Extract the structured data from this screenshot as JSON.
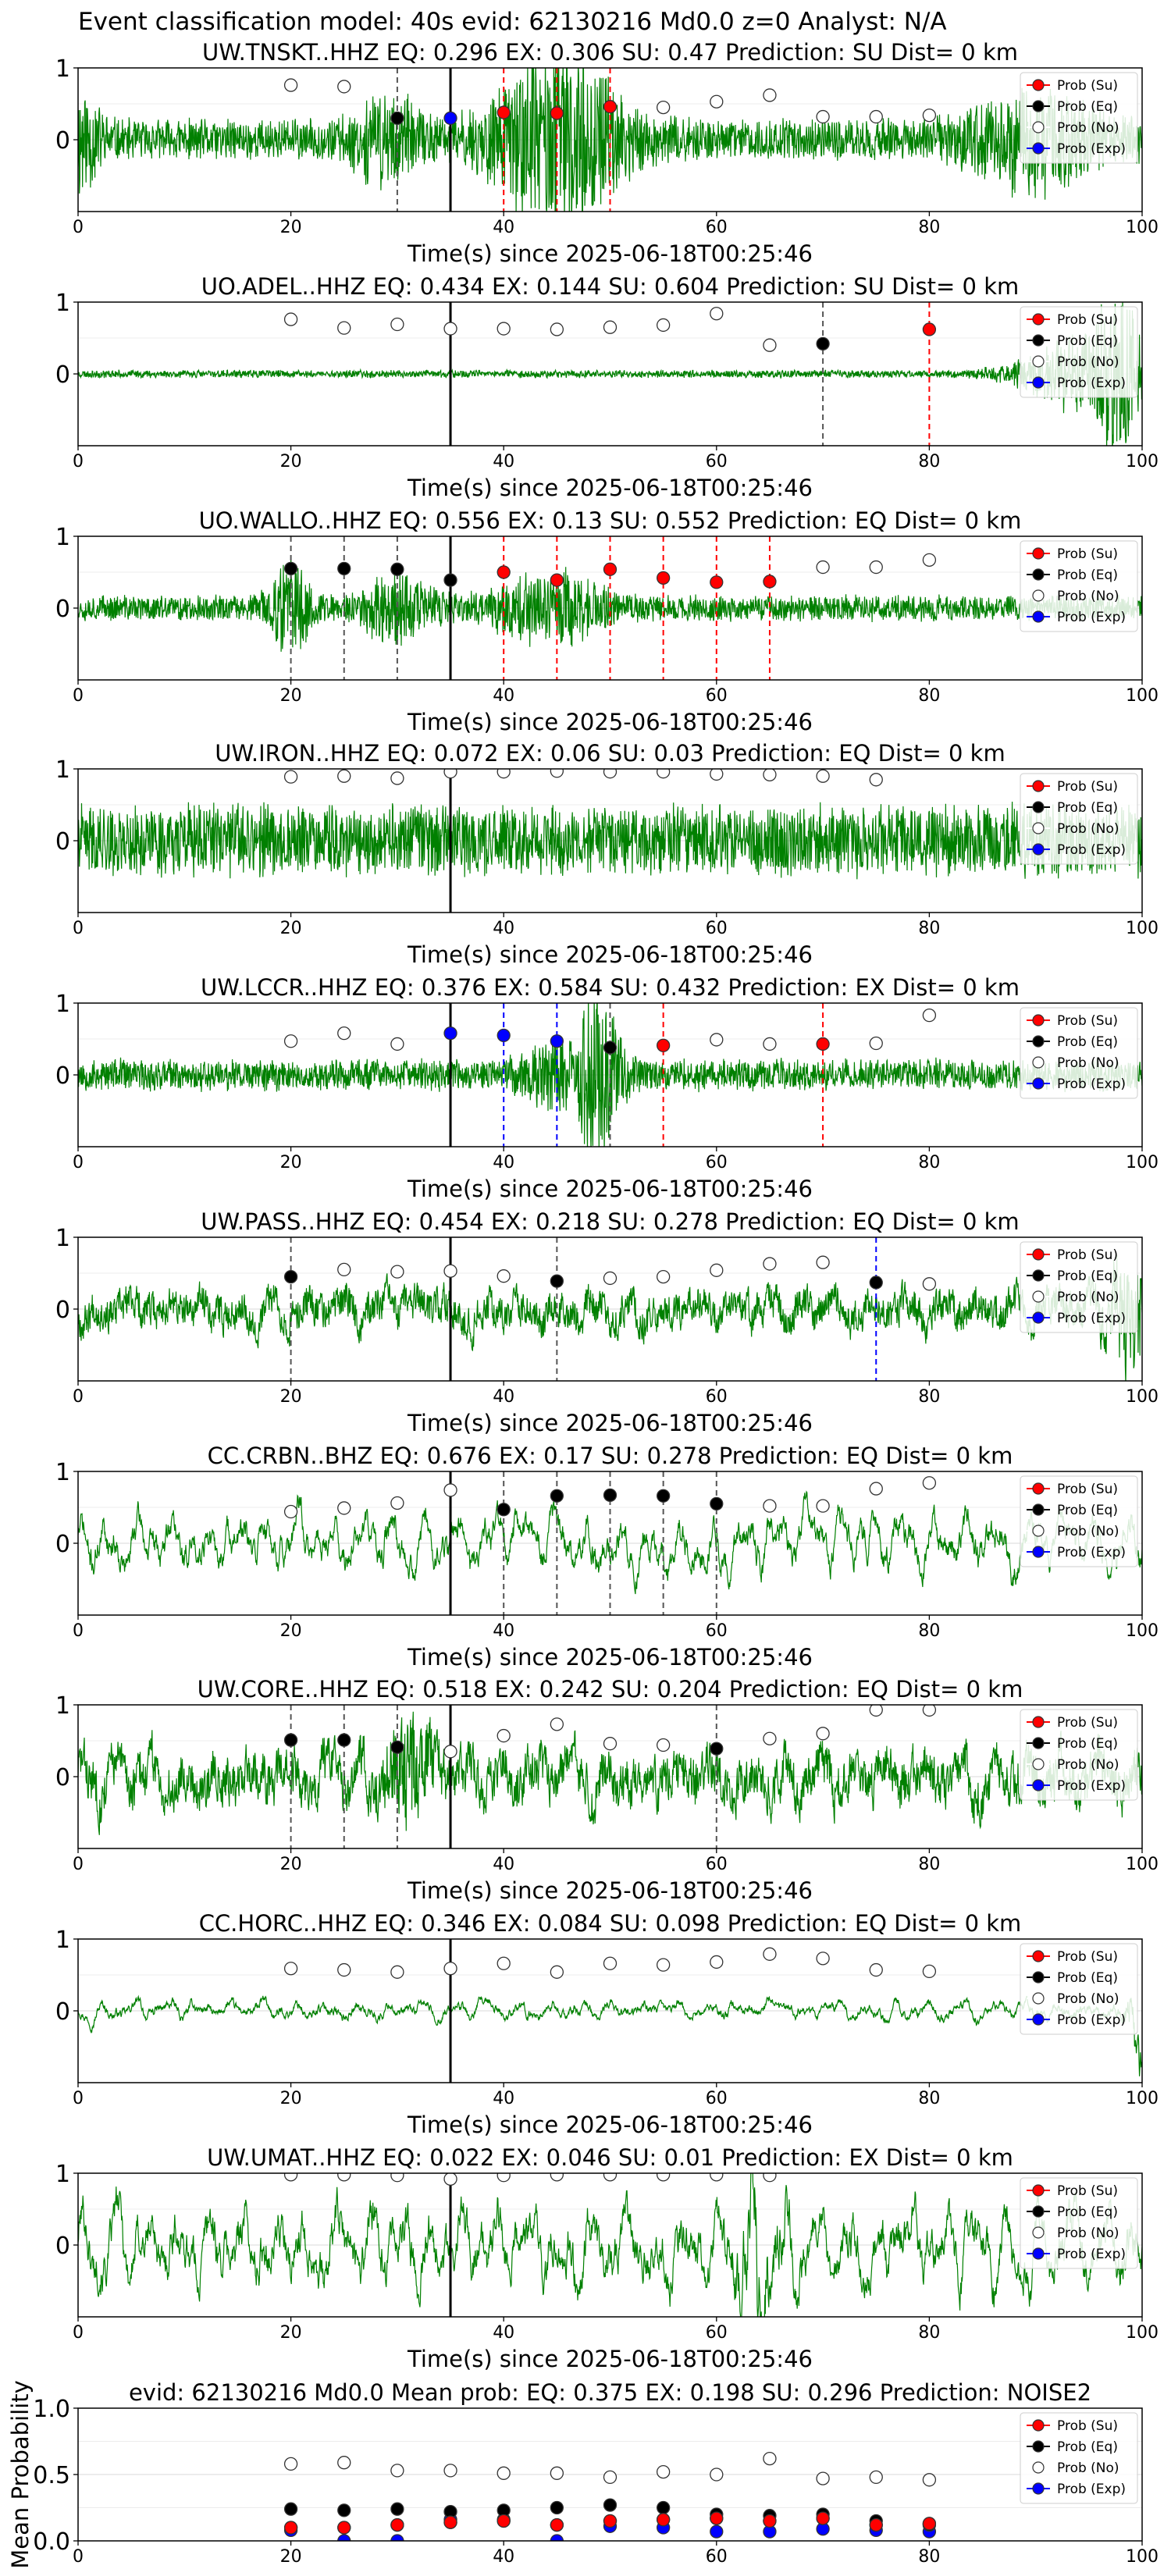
{
  "figure": {
    "suptitle": "Event classification model: 40s evid: 62130216 Md0.0 z=0 Analyst: N/A"
  },
  "legend_labels": [
    "Prob (Su)",
    "Prob (Eq)",
    "Prob (No)",
    "Prob (Exp)"
  ],
  "colors": {
    "waveform": "#008000",
    "su": "#ff0000",
    "eq": "#000000",
    "no": "#ffffff",
    "exp": "#0000ff",
    "marker_edge": "#333333",
    "eq_line": "#555555",
    "su_line": "#ff0000",
    "exp_line": "#0000ff",
    "onset_line": "#000000"
  },
  "chart_data": [
    {
      "type": "line",
      "title": "UW.TNSKT..HHZ   EQ: 0.296  EX: 0.306  SU: 0.47   Prediction: SU    Dist= 0 km",
      "xlabel": "Time(s) since 2025-06-18T00:25:46",
      "xlim": [
        0,
        100
      ],
      "ylim": [
        -1,
        1
      ],
      "xticks": [
        0,
        20,
        40,
        60,
        80,
        100
      ],
      "yticks": [
        0,
        1
      ],
      "onset": 35,
      "waveform": {
        "noise": 0.32,
        "seed": 11,
        "style": "noise",
        "bursts": [
          [
            45,
            6,
            1.2
          ],
          [
            90,
            6,
            0.6
          ],
          [
            0,
            2,
            0.7
          ],
          [
            29,
            3,
            0.5
          ]
        ]
      },
      "probs_no": [
        [
          20,
          0.76
        ],
        [
          25,
          0.74
        ],
        [
          55,
          0.45
        ],
        [
          60,
          0.53
        ],
        [
          65,
          0.62
        ],
        [
          70,
          0.32
        ],
        [
          75,
          0.32
        ],
        [
          80,
          0.34
        ]
      ],
      "probs_eq": [
        [
          30,
          0.3
        ]
      ],
      "probs_su": [
        [
          40,
          0.38
        ],
        [
          45,
          0.37
        ],
        [
          50,
          0.46
        ]
      ],
      "probs_exp": [
        [
          35,
          0.3
        ]
      ],
      "eq_lines": [
        30
      ],
      "su_lines": [
        40,
        45,
        50
      ],
      "exp_lines": [
        35
      ]
    },
    {
      "type": "line",
      "title": "UO.ADEL..HHZ   EQ: 0.434  EX: 0.144  SU: 0.604   Prediction: SU    Dist= 0 km",
      "xlabel": "Time(s) since 2025-06-18T00:25:46",
      "xlim": [
        0,
        100
      ],
      "ylim": [
        -1,
        1
      ],
      "xticks": [
        0,
        20,
        40,
        60,
        80,
        100
      ],
      "yticks": [
        0,
        1
      ],
      "onset": 35,
      "waveform": {
        "noise": 0.06,
        "seed": 23,
        "style": "noise",
        "bursts": [
          [
            95,
            6,
            0.6
          ],
          [
            98,
            2,
            0.9
          ]
        ]
      },
      "probs_no": [
        [
          20,
          0.76
        ],
        [
          25,
          0.64
        ],
        [
          30,
          0.69
        ],
        [
          35,
          0.63
        ],
        [
          40,
          0.63
        ],
        [
          45,
          0.62
        ],
        [
          50,
          0.65
        ],
        [
          55,
          0.68
        ],
        [
          60,
          0.84
        ],
        [
          65,
          0.4
        ]
      ],
      "probs_eq": [
        [
          70,
          0.42
        ]
      ],
      "probs_su": [
        [
          80,
          0.62
        ]
      ],
      "probs_exp": [],
      "eq_lines": [
        70
      ],
      "su_lines": [
        80
      ],
      "exp_lines": []
    },
    {
      "type": "line",
      "title": "UO.WALLO..HHZ   EQ: 0.556  EX: 0.13  SU: 0.552   Prediction: EQ    Dist= 0 km",
      "xlabel": "Time(s) since 2025-06-18T00:25:46",
      "xlim": [
        0,
        100
      ],
      "ylim": [
        -1,
        1
      ],
      "xticks": [
        0,
        20,
        40,
        60,
        80,
        100
      ],
      "yticks": [
        0,
        1
      ],
      "onset": 35,
      "waveform": {
        "noise": 0.2,
        "seed": 37,
        "style": "noise",
        "bursts": [
          [
            20,
            2,
            0.6
          ],
          [
            30,
            3,
            0.5
          ],
          [
            44,
            5,
            0.5
          ]
        ]
      },
      "probs_no": [
        [
          70,
          0.57
        ],
        [
          75,
          0.57
        ],
        [
          80,
          0.67
        ]
      ],
      "probs_eq": [
        [
          20,
          0.55
        ],
        [
          25,
          0.55
        ],
        [
          30,
          0.54
        ],
        [
          35,
          0.39
        ]
      ],
      "probs_su": [
        [
          40,
          0.5
        ],
        [
          45,
          0.39
        ],
        [
          50,
          0.54
        ],
        [
          55,
          0.42
        ],
        [
          60,
          0.36
        ],
        [
          65,
          0.37
        ]
      ],
      "probs_exp": [],
      "eq_lines": [
        20,
        25,
        30
      ],
      "su_lines": [
        40,
        45,
        50,
        55,
        60,
        65
      ],
      "exp_lines": []
    },
    {
      "type": "line",
      "title": "UW.IRON..HHZ   EQ: 0.072  EX: 0.06  SU: 0.03   Prediction: EQ    Dist= 0 km",
      "xlabel": "Time(s) since 2025-06-18T00:25:46",
      "xlim": [
        0,
        100
      ],
      "ylim": [
        -1,
        1
      ],
      "xticks": [
        0,
        20,
        40,
        60,
        80,
        100
      ],
      "yticks": [
        0,
        1
      ],
      "onset": 35,
      "waveform": {
        "noise": 0.55,
        "seed": 41,
        "style": "noise",
        "bursts": []
      },
      "probs_no": [
        [
          20,
          0.89
        ],
        [
          25,
          0.9
        ],
        [
          30,
          0.87
        ],
        [
          35,
          0.96
        ],
        [
          40,
          0.96
        ],
        [
          45,
          0.97
        ],
        [
          50,
          0.96
        ],
        [
          55,
          0.96
        ],
        [
          60,
          0.93
        ],
        [
          65,
          0.92
        ],
        [
          70,
          0.9
        ],
        [
          75,
          0.85
        ]
      ],
      "probs_eq": [],
      "probs_su": [],
      "probs_exp": [],
      "eq_lines": [],
      "su_lines": [],
      "exp_lines": []
    },
    {
      "type": "line",
      "title": "UW.LCCR..HHZ   EQ: 0.376  EX: 0.584  SU: 0.432   Prediction: EX    Dist= 0 km",
      "xlabel": "Time(s) since 2025-06-18T00:25:46",
      "xlim": [
        0,
        100
      ],
      "ylim": [
        -1,
        1
      ],
      "xticks": [
        0,
        20,
        40,
        60,
        80,
        100
      ],
      "yticks": [
        0,
        1
      ],
      "onset": 35,
      "waveform": {
        "noise": 0.25,
        "seed": 53,
        "style": "noise",
        "bursts": [
          [
            49,
            2,
            1.1
          ],
          [
            45,
            3,
            0.4
          ]
        ]
      },
      "probs_no": [
        [
          20,
          0.47
        ],
        [
          25,
          0.58
        ],
        [
          30,
          0.43
        ],
        [
          60,
          0.49
        ],
        [
          65,
          0.43
        ],
        [
          75,
          0.44
        ],
        [
          80,
          0.83
        ]
      ],
      "probs_eq": [
        [
          50,
          0.38
        ]
      ],
      "probs_su": [
        [
          55,
          0.41
        ],
        [
          70,
          0.43
        ]
      ],
      "probs_exp": [
        [
          35,
          0.58
        ],
        [
          40,
          0.55
        ],
        [
          45,
          0.47
        ]
      ],
      "eq_lines": [
        50
      ],
      "su_lines": [
        55,
        70
      ],
      "exp_lines": [
        40,
        45
      ]
    },
    {
      "type": "line",
      "title": "UW.PASS..HHZ   EQ: 0.454  EX: 0.218  SU: 0.278   Prediction: EQ    Dist= 0 km",
      "xlabel": "Time(s) since 2025-06-18T00:25:46",
      "xlim": [
        0,
        100
      ],
      "ylim": [
        -1,
        1
      ],
      "xticks": [
        0,
        20,
        40,
        60,
        80,
        100
      ],
      "yticks": [
        0,
        1
      ],
      "onset": 35,
      "waveform": {
        "noise": 0.28,
        "seed": 67,
        "style": "mixed",
        "bursts": [
          [
            99,
            2,
            0.8
          ]
        ]
      },
      "probs_no": [
        [
          25,
          0.55
        ],
        [
          30,
          0.52
        ],
        [
          35,
          0.53
        ],
        [
          40,
          0.46
        ],
        [
          50,
          0.43
        ],
        [
          55,
          0.45
        ],
        [
          60,
          0.54
        ],
        [
          65,
          0.63
        ],
        [
          70,
          0.65
        ],
        [
          80,
          0.35
        ]
      ],
      "probs_eq": [
        [
          20,
          0.45
        ],
        [
          45,
          0.39
        ],
        [
          75,
          0.37
        ]
      ],
      "probs_su": [],
      "probs_exp": [],
      "eq_lines": [
        20,
        45
      ],
      "su_lines": [],
      "exp_lines": [
        75
      ]
    },
    {
      "type": "line",
      "title": "CC.CRBN..BHZ   EQ: 0.676  EX: 0.17  SU: 0.278   Prediction: EQ    Dist= 0 km",
      "xlabel": "Time(s) since 2025-06-18T00:25:46",
      "xlim": [
        0,
        100
      ],
      "ylim": [
        -1,
        1
      ],
      "xticks": [
        0,
        20,
        40,
        60,
        80,
        100
      ],
      "yticks": [
        0,
        1
      ],
      "onset": 35,
      "waveform": {
        "noise": 0.35,
        "seed": 71,
        "style": "wave",
        "bursts": []
      },
      "probs_no": [
        [
          20,
          0.44
        ],
        [
          25,
          0.49
        ],
        [
          30,
          0.56
        ],
        [
          35,
          0.74
        ],
        [
          65,
          0.52
        ],
        [
          70,
          0.52
        ],
        [
          75,
          0.76
        ],
        [
          80,
          0.84
        ]
      ],
      "probs_eq": [
        [
          40,
          0.47
        ],
        [
          45,
          0.66
        ],
        [
          50,
          0.67
        ],
        [
          55,
          0.66
        ],
        [
          60,
          0.55
        ]
      ],
      "probs_su": [],
      "probs_exp": [],
      "eq_lines": [
        40,
        45,
        50,
        55,
        60
      ],
      "su_lines": [],
      "exp_lines": []
    },
    {
      "type": "line",
      "title": "UW.CORE..HHZ   EQ: 0.518  EX: 0.242  SU: 0.204   Prediction: EQ    Dist= 0 km",
      "xlabel": "Time(s) since 2025-06-18T00:25:46",
      "xlim": [
        0,
        100
      ],
      "ylim": [
        -1,
        1
      ],
      "xticks": [
        0,
        20,
        40,
        60,
        80,
        100
      ],
      "yticks": [
        0,
        1
      ],
      "onset": 35,
      "waveform": {
        "noise": 0.38,
        "seed": 83,
        "style": "mixed",
        "bursts": [
          [
            31,
            2,
            0.6
          ]
        ]
      },
      "probs_no": [
        [
          35,
          0.35
        ],
        [
          40,
          0.57
        ],
        [
          45,
          0.73
        ],
        [
          50,
          0.46
        ],
        [
          55,
          0.44
        ],
        [
          65,
          0.53
        ],
        [
          70,
          0.6
        ],
        [
          75,
          0.93
        ],
        [
          80,
          0.93
        ]
      ],
      "probs_eq": [
        [
          20,
          0.51
        ],
        [
          25,
          0.51
        ],
        [
          30,
          0.41
        ],
        [
          60,
          0.39
        ]
      ],
      "probs_su": [],
      "probs_exp": [],
      "eq_lines": [
        20,
        25,
        30,
        60
      ],
      "su_lines": [],
      "exp_lines": []
    },
    {
      "type": "line",
      "title": "CC.HORC..HHZ   EQ: 0.346  EX: 0.084  SU: 0.098   Prediction: EQ    Dist= 0 km",
      "xlabel": "Time(s) since 2025-06-18T00:25:46",
      "xlim": [
        0,
        100
      ],
      "ylim": [
        -1,
        1
      ],
      "xticks": [
        0,
        20,
        40,
        60,
        80,
        100
      ],
      "yticks": [
        0,
        1
      ],
      "onset": 35,
      "waveform": {
        "noise": 0.12,
        "seed": 97,
        "style": "wave",
        "bursts": [
          [
            99.5,
            1,
            0.6
          ]
        ]
      },
      "probs_no": [
        [
          20,
          0.59
        ],
        [
          25,
          0.57
        ],
        [
          30,
          0.54
        ],
        [
          35,
          0.59
        ],
        [
          40,
          0.66
        ],
        [
          45,
          0.54
        ],
        [
          50,
          0.66
        ],
        [
          55,
          0.64
        ],
        [
          60,
          0.68
        ],
        [
          65,
          0.79
        ],
        [
          70,
          0.73
        ],
        [
          75,
          0.57
        ],
        [
          80,
          0.55
        ]
      ],
      "probs_eq": [],
      "probs_su": [],
      "probs_exp": [],
      "eq_lines": [],
      "su_lines": [],
      "exp_lines": []
    },
    {
      "type": "line",
      "title": "UW.UMAT..HHZ   EQ: 0.022  EX: 0.046  SU: 0.01   Prediction: EX    Dist= 0 km",
      "xlabel": "Time(s) since 2025-06-18T00:25:46",
      "xlim": [
        0,
        100
      ],
      "ylim": [
        -1,
        1
      ],
      "xticks": [
        0,
        20,
        40,
        60,
        80,
        100
      ],
      "yticks": [
        0,
        1
      ],
      "onset": 35,
      "waveform": {
        "noise": 0.5,
        "seed": 101,
        "style": "wave",
        "bursts": [
          [
            64,
            2,
            0.8
          ]
        ]
      },
      "probs_no": [
        [
          20,
          0.98
        ],
        [
          25,
          0.98
        ],
        [
          30,
          0.97
        ],
        [
          35,
          0.92
        ],
        [
          40,
          0.97
        ],
        [
          45,
          0.98
        ],
        [
          50,
          0.98
        ],
        [
          55,
          0.98
        ],
        [
          60,
          0.98
        ],
        [
          65,
          0.97
        ]
      ],
      "probs_eq": [],
      "probs_su": [],
      "probs_exp": [],
      "eq_lines": [],
      "su_lines": [],
      "exp_lines": []
    },
    {
      "type": "scatter",
      "title": "evid: 62130216  Md0.0   Mean prob:   EQ: 0.375  EX: 0.198  SU: 0.296   Prediction: NOISE2",
      "xlabel": "",
      "ylabel": "Mean Probability",
      "xlim": [
        0,
        100
      ],
      "ylim": [
        0,
        1
      ],
      "xticks": [
        0,
        20,
        40,
        60,
        80,
        100
      ],
      "yticks": [
        0.0,
        0.5,
        1.0
      ],
      "ytick_labels": [
        "0.0",
        "0.5",
        "1.0"
      ],
      "probs_no": [
        [
          20,
          0.58
        ],
        [
          25,
          0.59
        ],
        [
          30,
          0.53
        ],
        [
          35,
          0.53
        ],
        [
          40,
          0.51
        ],
        [
          45,
          0.51
        ],
        [
          50,
          0.48
        ],
        [
          55,
          0.52
        ],
        [
          60,
          0.5
        ],
        [
          65,
          0.62
        ],
        [
          70,
          0.47
        ],
        [
          75,
          0.48
        ],
        [
          80,
          0.46
        ]
      ],
      "probs_eq": [
        [
          20,
          0.24
        ],
        [
          25,
          0.23
        ],
        [
          30,
          0.24
        ],
        [
          35,
          0.22
        ],
        [
          40,
          0.23
        ],
        [
          45,
          0.25
        ],
        [
          50,
          0.27
        ],
        [
          55,
          0.25
        ],
        [
          60,
          0.2
        ],
        [
          65,
          0.19
        ],
        [
          70,
          0.2
        ],
        [
          75,
          0.15
        ],
        [
          80,
          0.12
        ]
      ],
      "probs_su": [
        [
          20,
          0.1
        ],
        [
          25,
          0.1
        ],
        [
          30,
          0.12
        ],
        [
          35,
          0.14
        ],
        [
          40,
          0.15
        ],
        [
          45,
          0.12
        ],
        [
          50,
          0.15
        ],
        [
          55,
          0.16
        ],
        [
          60,
          0.17
        ],
        [
          65,
          0.15
        ],
        [
          70,
          0.17
        ],
        [
          75,
          0.12
        ],
        [
          80,
          0.13
        ]
      ],
      "probs_exp": [
        [
          20,
          0.08
        ],
        [
          25,
          0.0
        ],
        [
          30,
          0.0
        ],
        [
          35,
          0.16
        ],
        [
          40,
          0.16
        ],
        [
          45,
          0.0
        ],
        [
          50,
          0.11
        ],
        [
          55,
          0.1
        ],
        [
          60,
          0.07
        ],
        [
          65,
          0.07
        ],
        [
          70,
          0.09
        ],
        [
          75,
          0.08
        ],
        [
          80,
          0.07
        ]
      ]
    }
  ]
}
